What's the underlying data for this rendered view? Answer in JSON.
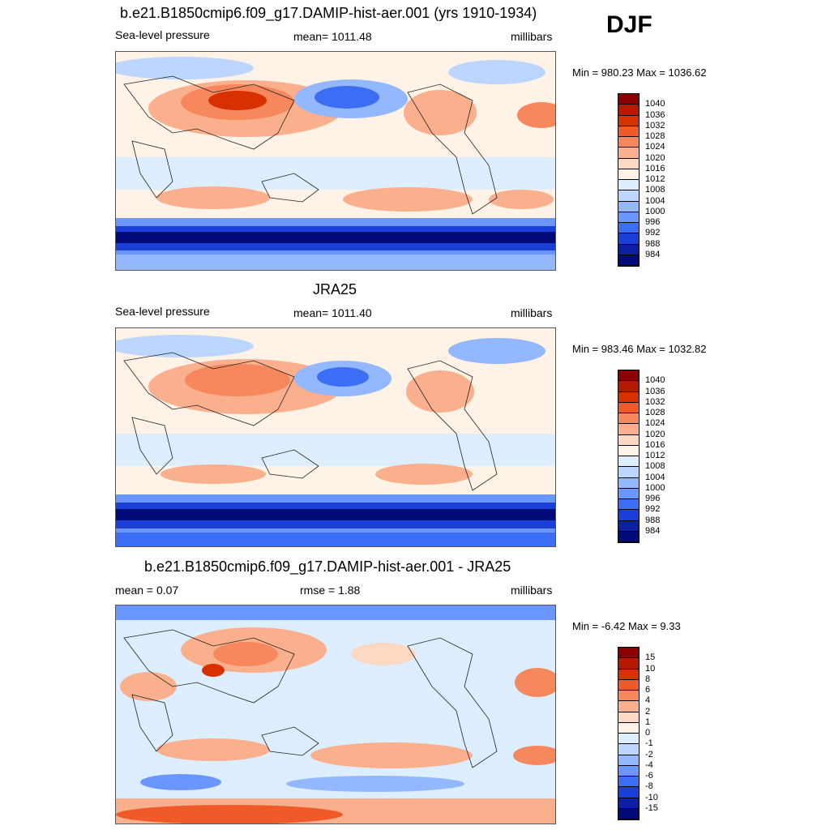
{
  "season": "DJF",
  "panels": [
    {
      "title": "b.e21.B1850cmip6.f09_g17.DAMIP-hist-aer.001 (yrs 1910-1934)",
      "left": "Sea-level pressure",
      "center": "mean= 1011.48",
      "right": "millibars",
      "minmax": "Min = 980.23 Max = 1036.62",
      "colorbar_labels": [
        "1040",
        "1036",
        "1032",
        "1028",
        "1024",
        "1020",
        "1016",
        "1012",
        "1008",
        "1004",
        "1000",
        "996",
        "992",
        "988",
        "984"
      ],
      "colors": [
        "#8b0000",
        "#b51a00",
        "#d83000",
        "#ef5a28",
        "#f7875c",
        "#fbb08d",
        "#fdd8c2",
        "#fff2e6",
        "#dceeff",
        "#bcd6ff",
        "#93b8ff",
        "#6a96ff",
        "#3c6df5",
        "#1a3fd6",
        "#0b1fa3",
        "#000a78"
      ]
    },
    {
      "title": "JRA25",
      "left": "Sea-level pressure",
      "center": "mean= 1011.40",
      "right": "millibars",
      "minmax": "Min = 983.46 Max = 1032.82",
      "colorbar_labels": [
        "1040",
        "1036",
        "1032",
        "1028",
        "1024",
        "1020",
        "1016",
        "1012",
        "1008",
        "1004",
        "1000",
        "996",
        "992",
        "988",
        "984"
      ],
      "colors": [
        "#8b0000",
        "#b51a00",
        "#d83000",
        "#ef5a28",
        "#f7875c",
        "#fbb08d",
        "#fdd8c2",
        "#fff2e6",
        "#dceeff",
        "#bcd6ff",
        "#93b8ff",
        "#6a96ff",
        "#3c6df5",
        "#1a3fd6",
        "#0b1fa3",
        "#000a78"
      ]
    },
    {
      "title": "b.e21.B1850cmip6.f09_g17.DAMIP-hist-aer.001 - JRA25",
      "left": "mean =   0.07",
      "center": "rmse =   1.88",
      "right": "millibars",
      "minmax": "Min =  -6.42 Max =   9.33",
      "colorbar_labels": [
        "15",
        "10",
        "8",
        "6",
        "4",
        "2",
        "1",
        "0",
        "-1",
        "-2",
        "-4",
        "-6",
        "-8",
        "-10",
        "-15"
      ],
      "colors": [
        "#8b0000",
        "#b51a00",
        "#d83000",
        "#ef5a28",
        "#f7875c",
        "#fbb08d",
        "#fdd8c2",
        "#fff2e6",
        "#dceeff",
        "#bcd6ff",
        "#93b8ff",
        "#6a96ff",
        "#3c6df5",
        "#1a3fd6",
        "#0b1fa3",
        "#000a78"
      ]
    }
  ]
}
